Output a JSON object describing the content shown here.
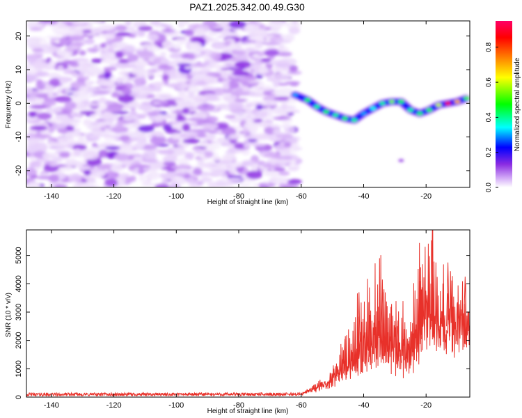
{
  "figure": {
    "title": "PAZ1.2025.342.00.49.G30"
  },
  "chart_data": [
    {
      "type": "heatmap",
      "title": "PAZ1.2025.342.00.49.G30",
      "xlabel": "Height of straight line (km)",
      "ylabel": "Frequency (Hz)",
      "xlim": [
        -148,
        -6
      ],
      "ylim": [
        -25,
        24.5
      ],
      "x_ticks": [
        -140,
        -120,
        -100,
        -80,
        -60,
        -40,
        -20
      ],
      "y_ticks": [
        -20,
        -10,
        0,
        10,
        20
      ],
      "colorbar": {
        "label": "Normalized spectral amplitude",
        "range": [
          0,
          0.95
        ],
        "ticks": [
          0.0,
          0.2,
          0.4,
          0.6,
          0.8
        ],
        "colors": [
          "#ffffff",
          "#d8b4f8",
          "#8a2be2",
          "#0000ff",
          "#00ffff",
          "#00ff00",
          "#ffff00",
          "#ff8000",
          "#ff0000",
          "#ff0066"
        ]
      },
      "noise_region": {
        "x_range": [
          -148,
          -62
        ],
        "y_range": [
          -25,
          24.5
        ],
        "level": 0.12
      },
      "signal_track": [
        {
          "x": -62,
          "y": 2.5,
          "a": 0.3
        },
        {
          "x": -58,
          "y": 1.0,
          "a": 0.45
        },
        {
          "x": -55,
          "y": -1.0,
          "a": 0.4
        },
        {
          "x": -52,
          "y": -2.5,
          "a": 0.45
        },
        {
          "x": -49,
          "y": -3.5,
          "a": 0.4
        },
        {
          "x": -46,
          "y": -4.5,
          "a": 0.45
        },
        {
          "x": -43,
          "y": -5.0,
          "a": 0.4
        },
        {
          "x": -40,
          "y": -3.0,
          "a": 0.3
        },
        {
          "x": -37,
          "y": -1.5,
          "a": 0.35
        },
        {
          "x": -34,
          "y": 0.0,
          "a": 0.4
        },
        {
          "x": -31,
          "y": 0.5,
          "a": 0.55
        },
        {
          "x": -28,
          "y": 0.5,
          "a": 0.45
        },
        {
          "x": -25,
          "y": -2.0,
          "a": 0.4
        },
        {
          "x": -22,
          "y": -3.0,
          "a": 0.45
        },
        {
          "x": -19,
          "y": -2.0,
          "a": 0.5
        },
        {
          "x": -16,
          "y": -0.5,
          "a": 0.6
        },
        {
          "x": -13,
          "y": 0.0,
          "a": 0.9
        },
        {
          "x": -10,
          "y": 0.5,
          "a": 0.7
        },
        {
          "x": -7,
          "y": 1.5,
          "a": 0.5
        }
      ],
      "faint_patches": [
        {
          "x": -28,
          "y": -17,
          "a": 0.12
        }
      ]
    },
    {
      "type": "line",
      "xlabel": "Height of straight line (km)",
      "ylabel": "SNR (10 * v/v)",
      "xlim": [
        -148,
        -6
      ],
      "ylim": [
        0,
        5900
      ],
      "x_ticks": [
        -140,
        -120,
        -100,
        -80,
        -60,
        -40,
        -20
      ],
      "y_ticks": [
        0,
        1000,
        2000,
        3000,
        4000,
        5000
      ],
      "color": "#e8312a",
      "envelope": [
        {
          "x": -148,
          "base": 80,
          "amp": 120
        },
        {
          "x": -60,
          "base": 90,
          "amp": 110
        },
        {
          "x": -57,
          "base": 250,
          "amp": 150
        },
        {
          "x": -52,
          "base": 420,
          "amp": 300
        },
        {
          "x": -48,
          "base": 700,
          "amp": 900
        },
        {
          "x": -45,
          "base": 900,
          "amp": 1600
        },
        {
          "x": -42,
          "base": 1000,
          "amp": 2600
        },
        {
          "x": -40,
          "base": 1100,
          "amp": 3300
        },
        {
          "x": -37,
          "base": 1300,
          "amp": 2800
        },
        {
          "x": -34,
          "base": 1500,
          "amp": 3600
        },
        {
          "x": -31,
          "base": 1300,
          "amp": 2500
        },
        {
          "x": -28,
          "base": 1200,
          "amp": 1700
        },
        {
          "x": -24,
          "base": 1600,
          "amp": 2300
        },
        {
          "x": -21,
          "base": 2200,
          "amp": 2700
        },
        {
          "x": -18,
          "base": 2600,
          "amp": 3300
        },
        {
          "x": -15,
          "base": 2300,
          "amp": 2000
        },
        {
          "x": -12,
          "base": 2600,
          "amp": 2100
        },
        {
          "x": -10,
          "base": 2500,
          "amp": 1300
        },
        {
          "x": -8,
          "base": 2600,
          "amp": 1600
        },
        {
          "x": -6,
          "base": 2200,
          "amp": 600
        }
      ],
      "peaks": [
        {
          "x": -46,
          "y": 2050
        },
        {
          "x": -41.5,
          "y": 3700
        },
        {
          "x": -38,
          "y": 2900
        },
        {
          "x": -34,
          "y": 4150
        },
        {
          "x": -29,
          "y": 2700
        },
        {
          "x": -22,
          "y": 4100
        },
        {
          "x": -18,
          "y": 5900
        },
        {
          "x": -13,
          "y": 4750
        },
        {
          "x": -7.5,
          "y": 4250
        }
      ]
    }
  ]
}
